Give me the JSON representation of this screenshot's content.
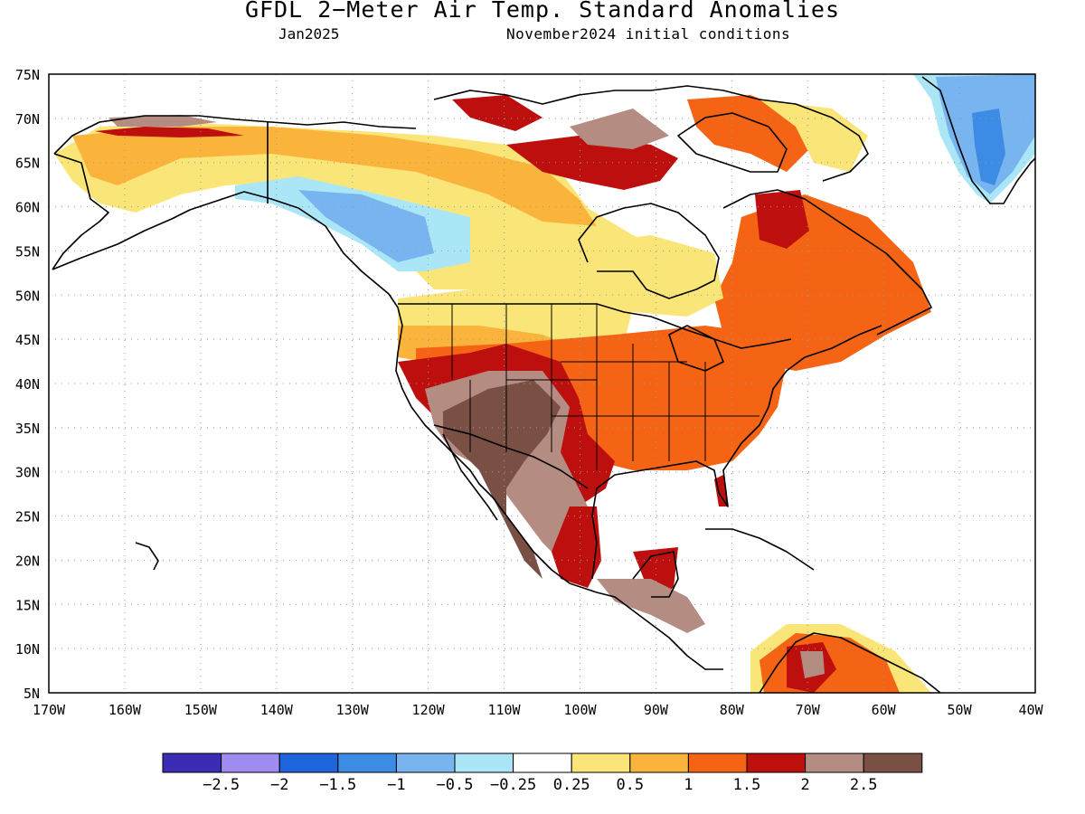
{
  "title": "GFDL 2−Meter Air Temp. Standard Anomalies",
  "subtitle_left": "Jan2025",
  "subtitle_right": "November2024 initial conditions",
  "lat_labels": [
    "75N",
    "70N",
    "65N",
    "60N",
    "55N",
    "50N",
    "45N",
    "40N",
    "35N",
    "30N",
    "25N",
    "20N",
    "15N",
    "10N",
    "5N"
  ],
  "lon_labels": [
    "170W",
    "160W",
    "150W",
    "140W",
    "130W",
    "120W",
    "110W",
    "100W",
    "90W",
    "80W",
    "70W",
    "60W",
    "50W",
    "40W"
  ],
  "colorbar": {
    "colors": [
      "#3c2cb4",
      "#a08cf0",
      "#1e64dc",
      "#3c8ce6",
      "#78b4f0",
      "#aae6f6",
      "#ffffff",
      "#fae678",
      "#fab43c",
      "#f56414",
      "#be0f0f",
      "#b48c82",
      "#7a4f44"
    ],
    "labels": [
      "−2.5",
      "−2",
      "−1.5",
      "−1",
      "−0.5",
      "−0.25",
      "0.25",
      "0.5",
      "1",
      "1.5",
      "2",
      "2.5"
    ]
  }
}
